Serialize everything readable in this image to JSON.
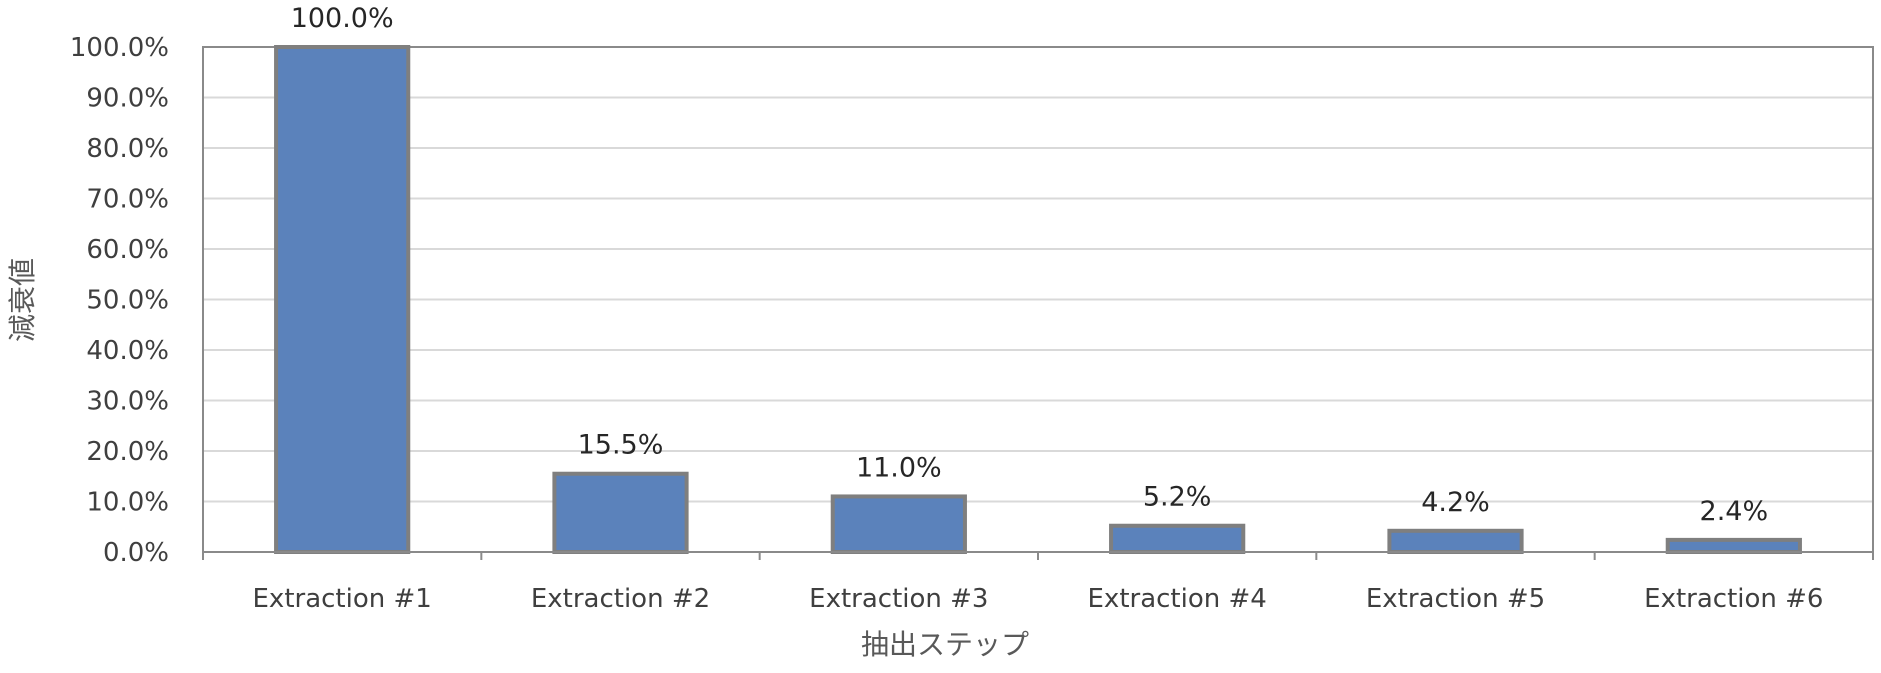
{
  "chart_data": {
    "type": "bar",
    "categories": [
      "Extraction #1",
      "Extraction #2",
      "Extraction #3",
      "Extraction #4",
      "Extraction #5",
      "Extraction #6"
    ],
    "values": [
      100.0,
      15.5,
      11.0,
      5.2,
      4.2,
      2.4
    ],
    "data_labels": [
      "100.0%",
      "15.5%",
      "11.0%",
      "5.2%",
      "4.2%",
      "2.4%"
    ],
    "xlabel": "抽出ステップ",
    "ylabel": "減衰値",
    "ylim": [
      0,
      100
    ],
    "yticks": [
      "0.0%",
      "10.0%",
      "20.0%",
      "30.0%",
      "40.0%",
      "50.0%",
      "60.0%",
      "70.0%",
      "80.0%",
      "90.0%",
      "100.0%"
    ],
    "grid": true,
    "legend": "none",
    "colors": {
      "bar_fill": "#5b82bb",
      "bar_stroke": "#7f7f7f",
      "grid": "#d9d9d9"
    }
  }
}
